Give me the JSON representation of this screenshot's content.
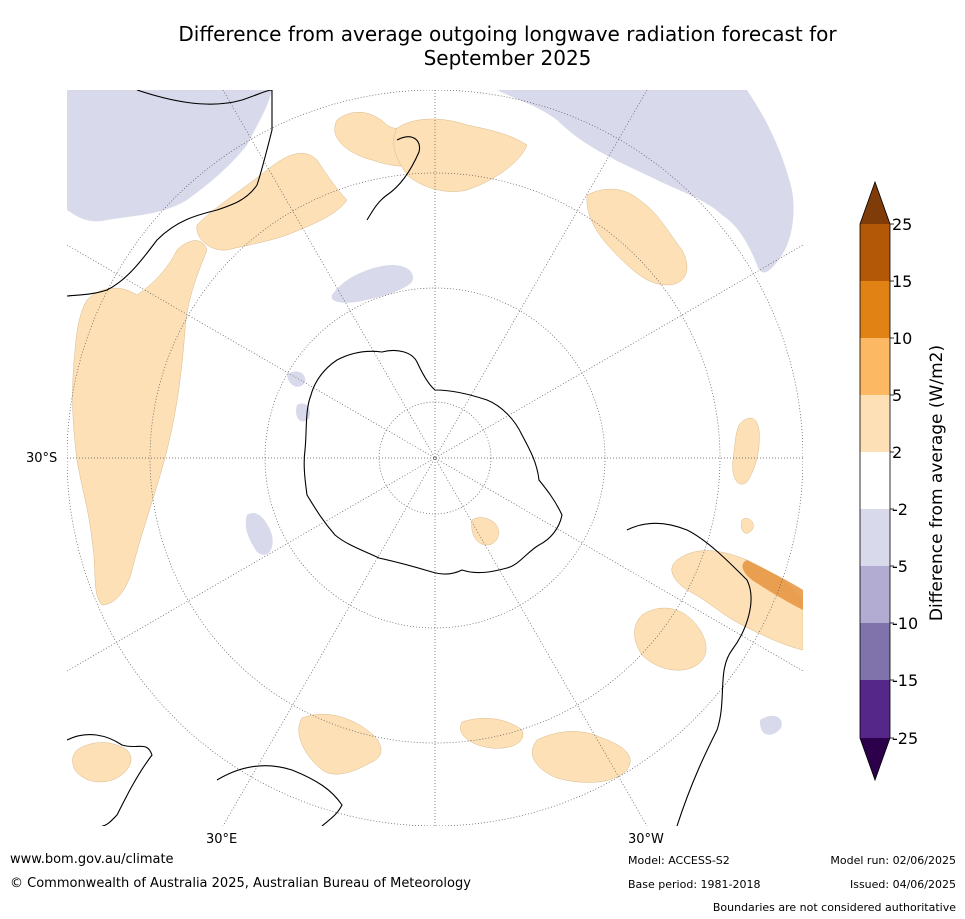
{
  "title_line1": "Difference from average outgoing longwave radiation forecast for",
  "title_line2": "September 2025",
  "map": {
    "projection": "south-polar-stereographic",
    "labels": {
      "lat_30s": "30°S",
      "lon_30e": "30°E",
      "lon_30w": "30°W"
    },
    "colors": {
      "land": "#000000",
      "positive_2_5": "#fde0b6",
      "negative_2_5": "#d8d9ea",
      "strong_positive": "#e6933e",
      "graticule": "#555555"
    }
  },
  "colorbar": {
    "title": "Difference from average (W/m2)",
    "ticks": [
      "25",
      "15",
      "10",
      "5",
      "2",
      "-2",
      "-5",
      "-10",
      "-15",
      "-25"
    ],
    "colors": [
      "#7f3b08",
      "#b35806",
      "#e08214",
      "#fdb863",
      "#fee0b6",
      "#ffffff",
      "#d8daeb",
      "#b2abd2",
      "#8073ac",
      "#542788",
      "#2d004b"
    ]
  },
  "footer": {
    "website": "www.bom.gov.au/climate",
    "copyright": "© Commonwealth of Australia 2025, Australian Bureau of Meteorology",
    "model": "Model: ACCESS-S2",
    "base_period": "Base period: 1981-2018",
    "model_run": "Model run: 02/06/2025",
    "issued": "Issued: 04/06/2025",
    "disclaimer": "Boundaries are not considered authoritative"
  }
}
